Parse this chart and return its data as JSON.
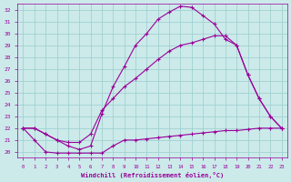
{
  "xlabel": "Windchill (Refroidissement éolien,°C)",
  "xlim": [
    -0.5,
    23.5
  ],
  "ylim": [
    19.5,
    32.5
  ],
  "yticks": [
    20,
    21,
    22,
    23,
    24,
    25,
    26,
    27,
    28,
    29,
    30,
    31,
    32
  ],
  "xticks": [
    0,
    1,
    2,
    3,
    4,
    5,
    6,
    7,
    8,
    9,
    10,
    11,
    12,
    13,
    14,
    15,
    16,
    17,
    18,
    19,
    20,
    21,
    22,
    23
  ],
  "bg_color": "#cceaea",
  "line_color": "#990099",
  "grid_color": "#99cccc",
  "curve1_x": [
    0,
    1,
    2,
    3,
    4,
    5,
    6,
    7,
    8,
    9,
    10,
    11,
    12,
    13,
    14,
    15,
    16,
    17,
    18,
    19,
    20,
    21,
    22,
    23
  ],
  "curve1_y": [
    22.0,
    21.0,
    20.0,
    19.9,
    19.9,
    19.9,
    19.9,
    19.9,
    20.5,
    21.0,
    21.0,
    21.1,
    21.2,
    21.3,
    21.4,
    21.5,
    21.6,
    21.7,
    21.8,
    21.8,
    21.9,
    22.0,
    22.0,
    22.0
  ],
  "curve2_x": [
    0,
    1,
    2,
    3,
    4,
    5,
    6,
    7,
    8,
    9,
    10,
    11,
    12,
    13,
    14,
    15,
    16,
    17,
    18,
    19,
    20,
    21,
    22,
    23
  ],
  "curve2_y": [
    22.0,
    22.0,
    21.5,
    21.0,
    20.5,
    20.2,
    20.5,
    23.2,
    25.5,
    27.2,
    29.0,
    30.0,
    31.2,
    31.8,
    32.3,
    32.2,
    31.5,
    30.8,
    29.5,
    29.0,
    26.5,
    24.5,
    23.0,
    22.0
  ],
  "curve3_x": [
    0,
    1,
    2,
    3,
    4,
    5,
    6,
    7,
    8,
    9,
    10,
    11,
    12,
    13,
    14,
    15,
    16,
    17,
    18,
    19,
    20,
    21,
    22,
    23
  ],
  "curve3_y": [
    22.0,
    22.0,
    21.5,
    21.0,
    20.8,
    20.8,
    21.5,
    23.5,
    24.5,
    25.5,
    26.2,
    27.0,
    27.8,
    28.5,
    29.0,
    29.2,
    29.5,
    29.8,
    29.8,
    29.0,
    26.5,
    24.5,
    23.0,
    22.0
  ]
}
